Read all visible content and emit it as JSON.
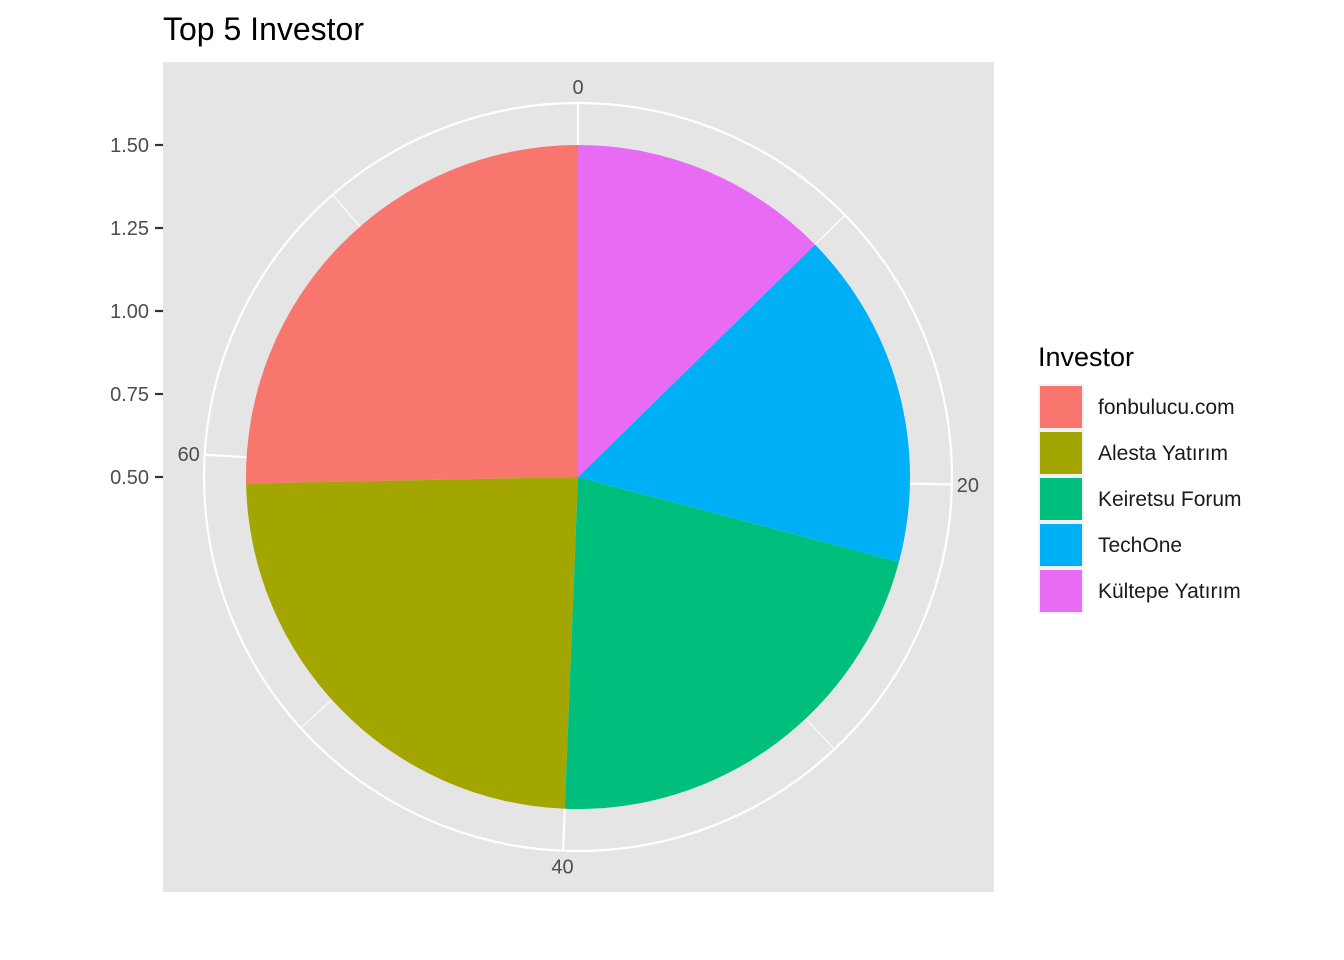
{
  "chart_data": {
    "type": "pie",
    "title": "Top 5 Investor",
    "theta_axis": {
      "max": 79,
      "ticks": [
        0,
        20,
        40,
        60
      ]
    },
    "r_axis": {
      "ticks": [
        "0.50",
        "0.75",
        "1.00",
        "1.25",
        "1.50"
      ]
    },
    "legend": {
      "title": "Investor",
      "placement": "right"
    },
    "slices": [
      {
        "name": "fonbulucu.com",
        "value": 20,
        "color": "#F8766D"
      },
      {
        "name": "Alesta Yatırım",
        "value": 19,
        "color": "#A3A500"
      },
      {
        "name": "Keiretsu Forum",
        "value": 17,
        "color": "#00BF7D"
      },
      {
        "name": "TechOne",
        "value": 13,
        "color": "#00B0F6"
      },
      {
        "name": "Kültepe Yatırım",
        "value": 10,
        "color": "#E76BF3"
      }
    ],
    "panel_background": "#E5E5E5",
    "grid_color": "#FFFFFF"
  }
}
